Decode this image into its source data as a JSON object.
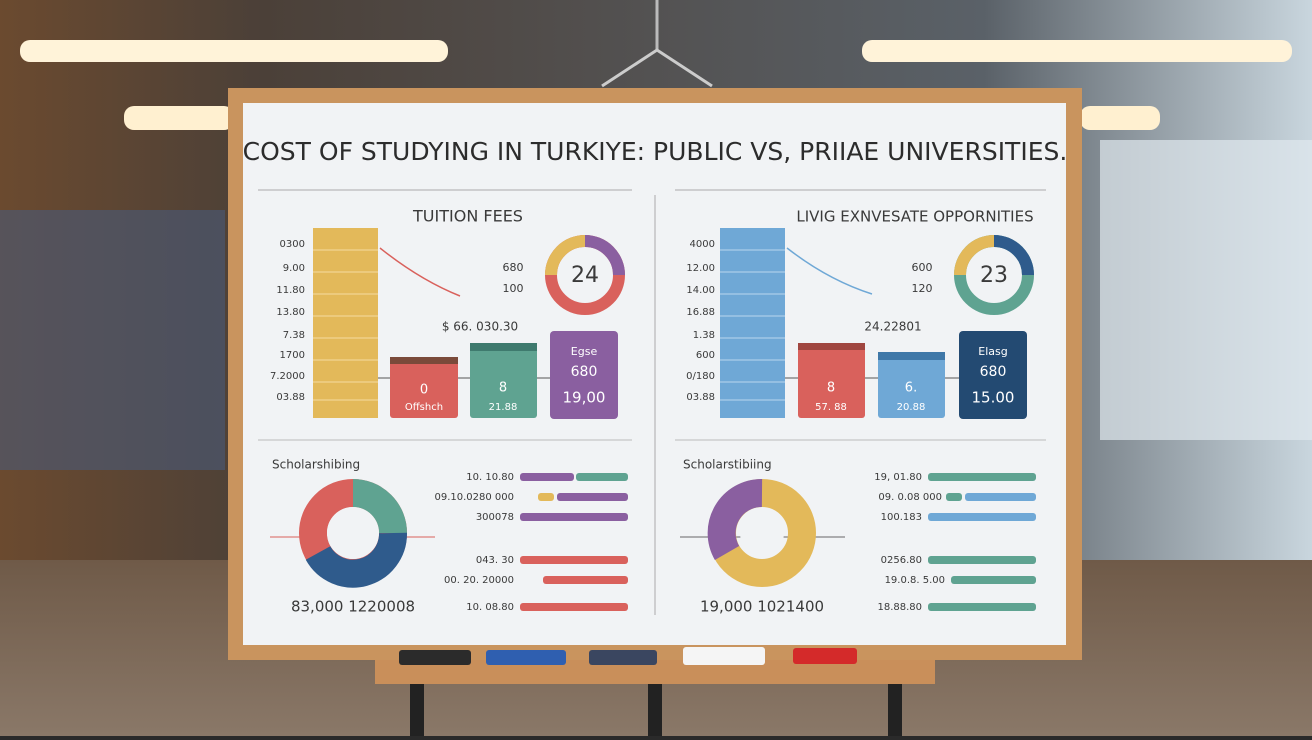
{
  "title": "COST OF STUDYING IN TURKIYE: PUBLIC VS, PRIIAE UNIVERSITIES.",
  "panels": [
    {
      "heading": "TUITION FEES",
      "axis_labels": [
        "0300",
        "9.00",
        "11.80",
        "13.80",
        "7.38",
        "1700",
        "7.2000",
        "03.88"
      ],
      "side_labels": [
        "680",
        "100"
      ],
      "total": "$ 66. 030.30",
      "donut_label": "24",
      "boxes": [
        [
          "0",
          "Offshch"
        ],
        [
          "8",
          "21.88"
        ],
        [
          "Egse",
          "680",
          "19,00"
        ]
      ],
      "scholarship_heading": "Scholarshibing",
      "scholarship_rows": [
        "10. 10.80",
        "09.10.0280 000",
        "300078",
        "043. 30",
        "00. 20. 20000",
        "10. 08.80"
      ],
      "scholarship_total": "83,000 1220008"
    },
    {
      "heading": "LIVIG EXNVESATE OPPORNITIES",
      "axis_labels": [
        "4000",
        "12.00",
        "14.00",
        "16.88",
        "1.38",
        "600",
        "0/180",
        "03.88"
      ],
      "side_labels": [
        "600",
        "120"
      ],
      "total": "24.22801",
      "donut_label": "23",
      "boxes": [
        [
          "8",
          "57. 88"
        ],
        [
          "6.",
          "20.88"
        ],
        [
          "Elasg",
          "680",
          "15.00"
        ]
      ],
      "scholarship_heading": "Scholarstibiing",
      "scholarship_rows": [
        "19, 01.80",
        "09. 0.08 000",
        "100.183",
        "0256.80",
        "19.0.8. 5.00",
        "18.88.80"
      ],
      "scholarship_total": "19,000 1021400"
    }
  ]
}
